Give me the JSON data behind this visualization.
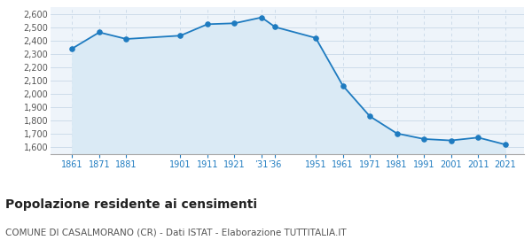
{
  "years": [
    1861,
    1871,
    1881,
    1901,
    1911,
    1921,
    1931,
    1936,
    1951,
    1961,
    1971,
    1981,
    1991,
    2001,
    2011,
    2021
  ],
  "population": [
    2341,
    2463,
    2413,
    2438,
    2524,
    2531,
    2575,
    2503,
    2421,
    2063,
    1832,
    1703,
    1661,
    1650,
    1672,
    1620
  ],
  "line_color": "#1e7bc0",
  "fill_color": "#daeaf5",
  "marker_color": "#1e7bc0",
  "background_color": "#eef4fa",
  "grid_color": "#c8d8e8",
  "ylim": [
    1550,
    2650
  ],
  "yticks": [
    1600,
    1700,
    1800,
    1900,
    2000,
    2100,
    2200,
    2300,
    2400,
    2500,
    2600
  ],
  "x_tick_positions": [
    1861,
    1871,
    1881,
    1901,
    1911,
    1921,
    1931,
    1936,
    1951,
    1961,
    1971,
    1981,
    1991,
    2001,
    2011,
    2021
  ],
  "x_tick_labels": [
    "1861",
    "1871",
    "1881",
    "1901",
    "1911",
    "1921",
    "’31",
    "’36",
    "1951",
    "1961",
    "1971",
    "1981",
    "1991",
    "2001",
    "2011",
    "2021"
  ],
  "xlim_left": 1853,
  "xlim_right": 2028,
  "title": "Popolazione residente ai censimenti",
  "subtitle": "COMUNE DI CASALMORANO (CR) - Dati ISTAT - Elaborazione TUTTITALIA.IT",
  "title_fontsize": 10,
  "subtitle_fontsize": 7.5
}
